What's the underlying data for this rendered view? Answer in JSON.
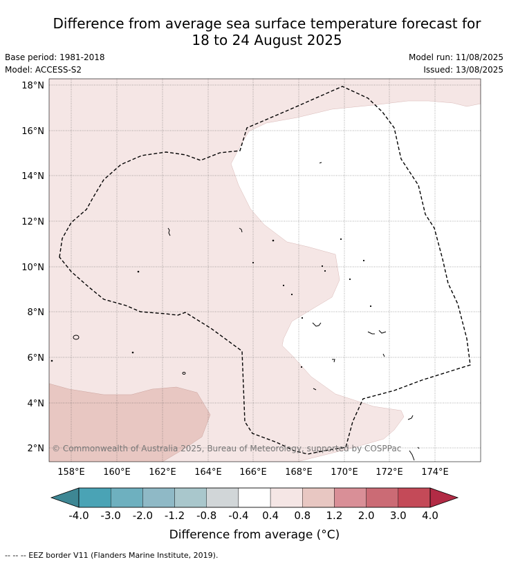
{
  "title_line1": "Difference from average sea surface temperature forecast for",
  "title_line2": "18 to 24 August 2025",
  "base_period": "Base period: 1981-2018",
  "model": "Model: ACCESS-S2",
  "model_run": "Model run: 11/08/2025",
  "issued": "Issued: 13/08/2025",
  "copyright": "© Commonwealth of Australia 2025, Bureau of Meteorology, supported by COSPPac",
  "lat_ticks": [
    "18°N",
    "16°N",
    "14°N",
    "12°N",
    "10°N",
    "8°N",
    "6°N",
    "4°N",
    "2°N"
  ],
  "lon_ticks": [
    "158°E",
    "160°E",
    "162°E",
    "164°E",
    "166°E",
    "168°E",
    "170°E",
    "172°E",
    "174°E"
  ],
  "colorbar": {
    "colors": [
      "#3e8794",
      "#4aa3b5",
      "#6eb0bf",
      "#8fb9c6",
      "#a9c7cc",
      "#d1d6d8",
      "#ffffff",
      "#f5e6e5",
      "#e8c7c2",
      "#d98f97",
      "#cb6b75",
      "#c44a58",
      "#b22b45"
    ],
    "labels": [
      "-4.0",
      "-3.0",
      "-2.0",
      "-1.2",
      "-0.8",
      "-0.4",
      "0.4",
      "0.8",
      "1.2",
      "2.0",
      "3.0",
      "4.0"
    ],
    "title": "Difference from average (°C)"
  },
  "footnote": "--  --  -- EEZ border V11 (Flanders Marine Institute, 2019)."
}
